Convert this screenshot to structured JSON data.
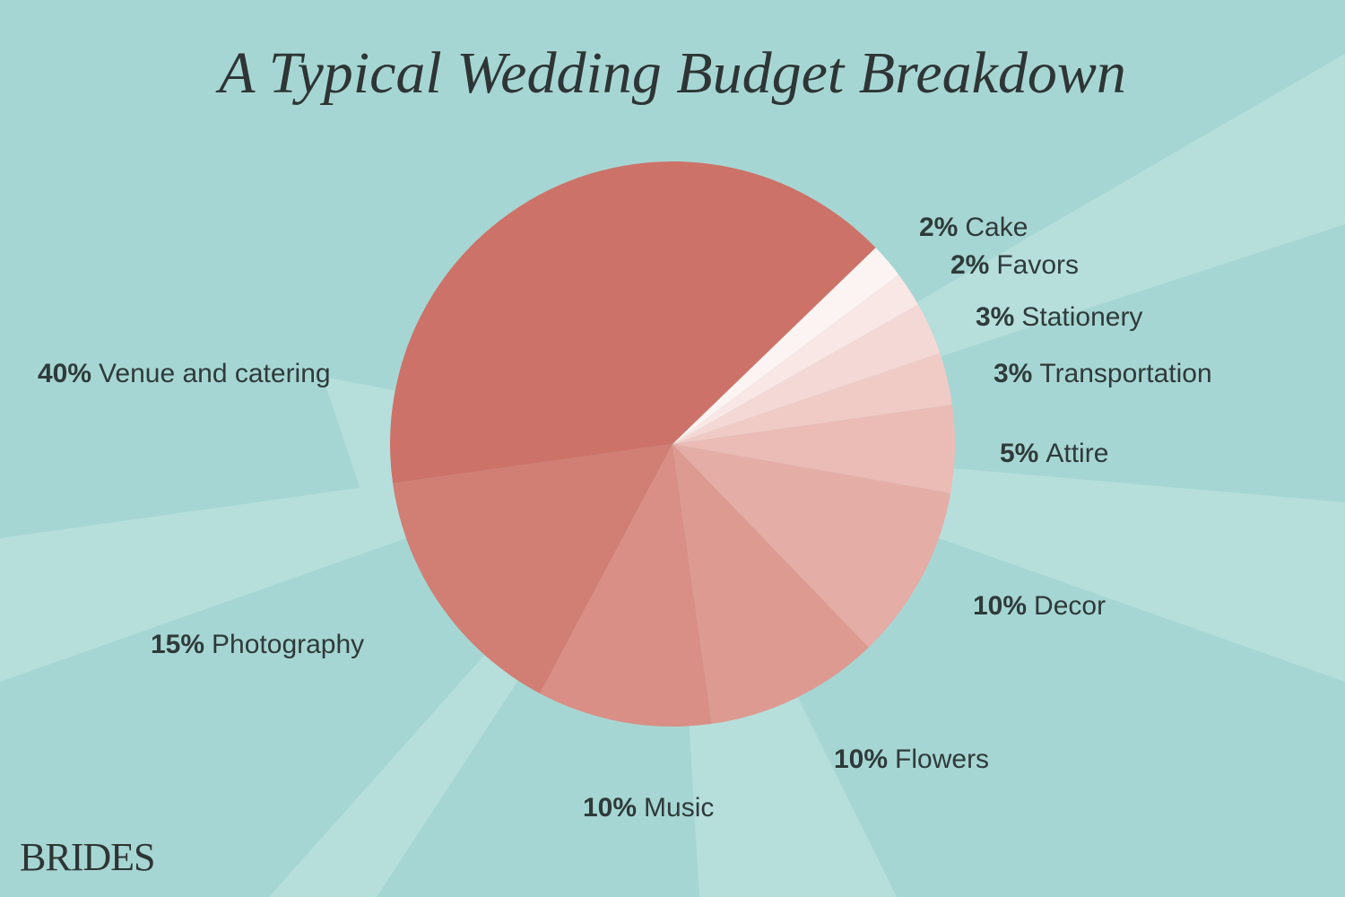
{
  "chart_data": {
    "type": "pie",
    "title": "A Typical Wedding Budget Breakdown",
    "categories": [
      "Cake",
      "Favors",
      "Stationery",
      "Transportation",
      "Attire",
      "Decor",
      "Flowers",
      "Music",
      "Photography",
      "Venue and catering"
    ],
    "values": [
      2,
      2,
      3,
      3,
      5,
      10,
      10,
      10,
      15,
      40
    ],
    "value_labels": [
      "2%",
      "2%",
      "3%",
      "3%",
      "5%",
      "10%",
      "10%",
      "10%",
      "15%",
      "40%"
    ],
    "colors": [
      "#fcf4f3",
      "#f8e7e5",
      "#f4d8d5",
      "#f0cbc6",
      "#ebbbb6",
      "#e4ada6",
      "#dd9a91",
      "#d98f86",
      "#d17e74",
      "#cd7268"
    ]
  },
  "brand": "BRIDES"
}
